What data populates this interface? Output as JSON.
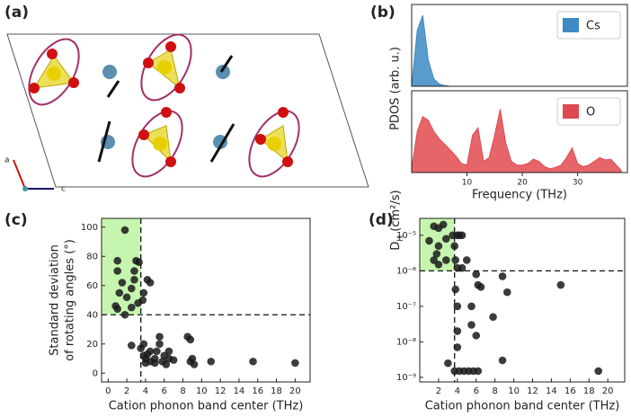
{
  "structure": {
    "panel_label": "(a)",
    "axes": [
      "a",
      "c"
    ]
  },
  "chart_data": [
    {
      "type": "area",
      "panel_label": "(b)",
      "ylabel": "PDOS (arb. u.)",
      "xlabel": "Frequency (THz)",
      "x": [
        0,
        1,
        2,
        3,
        4,
        5,
        6,
        7,
        8,
        9,
        10,
        11,
        12,
        13,
        14,
        15,
        16,
        17,
        18,
        19,
        20,
        21,
        22,
        23,
        24,
        25,
        26,
        27,
        28,
        29,
        30,
        31,
        32,
        33,
        34,
        35,
        36,
        37,
        38
      ],
      "xlim": [
        0,
        39
      ],
      "xticks": [
        10,
        20,
        30
      ],
      "ylim": [
        0,
        1
      ],
      "series": [
        {
          "name": "Cs",
          "color": "#3d8ac4",
          "values": [
            0,
            0.75,
            0.95,
            0.35,
            0.1,
            0.03,
            0.01,
            0,
            0,
            0,
            0,
            0,
            0,
            0,
            0,
            0,
            0,
            0,
            0,
            0,
            0,
            0,
            0,
            0,
            0,
            0,
            0,
            0,
            0,
            0,
            0,
            0,
            0,
            0,
            0,
            0,
            0,
            0,
            0
          ]
        },
        {
          "name": "O",
          "color": "#e04a4f",
          "values": [
            0.05,
            0.55,
            0.75,
            0.7,
            0.55,
            0.45,
            0.38,
            0.3,
            0.22,
            0.12,
            0.1,
            0.5,
            0.6,
            0.15,
            0.2,
            0.5,
            0.85,
            0.4,
            0.15,
            0.1,
            0.1,
            0.12,
            0.18,
            0.15,
            0.08,
            0.05,
            0.07,
            0.1,
            0.2,
            0.33,
            0.12,
            0.08,
            0.1,
            0.15,
            0.2,
            0.17,
            0.18,
            0.1,
            0.02
          ]
        }
      ]
    },
    {
      "type": "scatter",
      "panel_label": "(c)",
      "ylabel": [
        "Standard deviation",
        "of rotating angles (°)"
      ],
      "xlabel": "Cation phonon band center (THz)",
      "color": "#1a1a1a",
      "xlim": [
        -0.7,
        21.6
      ],
      "xticks": [
        0,
        2,
        4,
        6,
        8,
        10,
        12,
        14,
        16,
        18,
        20
      ],
      "ylim": [
        -6,
        106
      ],
      "yticks": [
        0,
        20,
        40,
        60,
        80,
        100
      ],
      "vline": 3.5,
      "hline": 40,
      "highlight_color": "#c6f5b0",
      "x": [
        1.8,
        1,
        1,
        1.5,
        1.2,
        0.8,
        1,
        1.8,
        2,
        2.5,
        2.8,
        2.8,
        3,
        3.3,
        2.5,
        3.2,
        4.2,
        4.5,
        3.8,
        3.7,
        2.5,
        3.5,
        3.8,
        4,
        4.2,
        4.5,
        5,
        5.2,
        5.5,
        5.8,
        6,
        6.5,
        7,
        6.2,
        5,
        4.5,
        8.5,
        8.8,
        9,
        8.8,
        9.2,
        11,
        15.5,
        20,
        4,
        3.8,
        5.5,
        6.5
      ],
      "y": [
        98,
        77,
        70,
        62,
        55,
        46,
        44,
        40,
        52,
        58,
        64,
        70,
        77,
        76,
        45,
        48,
        64,
        62,
        55,
        50,
        19,
        17,
        12,
        10,
        13,
        8,
        10,
        15,
        20,
        8,
        12,
        10,
        9,
        6,
        7,
        15,
        25,
        23,
        10,
        8,
        6,
        8,
        8,
        7,
        7,
        20,
        25,
        15
      ]
    },
    {
      "type": "scatter",
      "panel_label": "(d)",
      "ylabel": {
        "main": "D",
        "sub": "H",
        "rest": " (cm²/s)"
      },
      "xlabel": "Cation phonon band center (THz)",
      "color": "#1a1a1a",
      "yscale": "log",
      "xlim": [
        0,
        21.8
      ],
      "xticks": [
        2,
        4,
        6,
        8,
        10,
        12,
        14,
        16,
        18,
        20
      ],
      "ylim": [
        7.4e-10,
        3e-05
      ],
      "yticks": [
        {
          "value": 1e-09,
          "label": "10⁻⁹"
        },
        {
          "value": 1e-08,
          "label": "10⁻⁸"
        },
        {
          "value": 1e-07,
          "label": "10⁻⁷"
        },
        {
          "value": 1e-06,
          "label": "10⁻⁶"
        },
        {
          "value": 1e-05,
          "label": "10⁻⁵"
        }
      ],
      "vline": 3.7,
      "hline": 1e-06,
      "highlight_color": "#c6f5b0",
      "x": [
        1,
        1.5,
        2,
        2,
        2,
        1.5,
        1.8,
        2.5,
        2.8,
        2.8,
        3.5,
        3.7,
        4,
        4.2,
        4.5,
        3.8,
        4,
        4.5,
        5,
        3.8,
        4,
        4,
        4,
        3,
        3.7,
        4.2,
        4.7,
        5.2,
        5.7,
        6.2,
        5.5,
        6,
        6.2,
        6,
        8.8,
        7.8,
        8.8,
        9.3,
        15,
        19,
        5.5,
        6.5
      ],
      "y": [
        7e-06,
        1.8e-05,
        1.6e-05,
        5e-06,
        1.5e-06,
        2e-06,
        3e-06,
        2e-05,
        8e-06,
        2e-06,
        1e-05,
        5e-06,
        1e-05,
        1e-05,
        1e-05,
        2e-06,
        1.2e-06,
        1.2e-06,
        2e-06,
        3e-07,
        1e-07,
        2e-08,
        7e-09,
        2.5e-09,
        1.5e-09,
        1.5e-09,
        1.5e-09,
        1.5e-09,
        1.5e-09,
        1.5e-09,
        1e-07,
        1.5e-08,
        4e-07,
        8e-07,
        7e-07,
        5e-08,
        3e-09,
        2.5e-07,
        4e-07,
        1.5e-09,
        3e-08,
        3.5e-07
      ]
    }
  ]
}
